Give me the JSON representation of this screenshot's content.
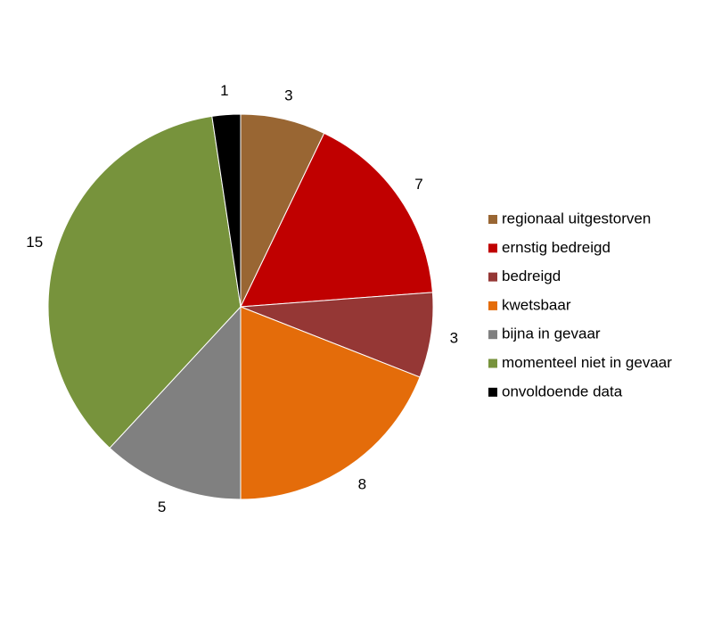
{
  "chart_data": {
    "type": "pie",
    "categories": [
      "regionaal uitgestorven",
      "ernstig bedreigd",
      "bedreigd",
      "kwetsbaar",
      "bijna in gevaar",
      "momenteel niet in gevaar",
      "onvoldoende data"
    ],
    "values": [
      3,
      7,
      3,
      8,
      5,
      15,
      1
    ],
    "colors": [
      "#996633",
      "#c00000",
      "#953735",
      "#e46c0a",
      "#808080",
      "#77933c",
      "#000000"
    ],
    "legend": "right"
  }
}
